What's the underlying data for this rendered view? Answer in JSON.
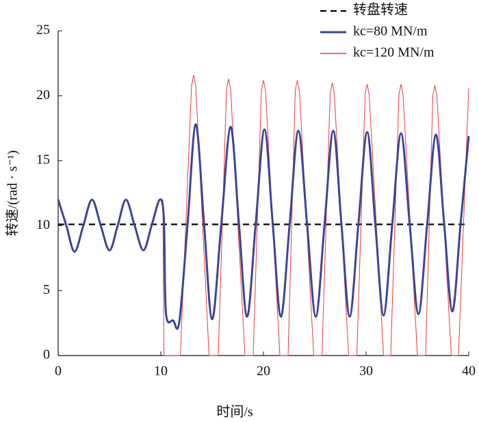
{
  "chart_data": {
    "type": "line",
    "xlabel": "时间/s",
    "ylabel": "转速/(rad · s⁻¹)",
    "xlim": [
      0,
      40
    ],
    "xticks": [
      0,
      10,
      20,
      30,
      40
    ],
    "ylim": [
      0,
      25
    ],
    "yticks": [
      0,
      5,
      10,
      15,
      20,
      25
    ],
    "legend": "upper right",
    "series": [
      {
        "name": "转盘转速",
        "color": "#000000",
        "style": "dashed",
        "x": [
          0,
          40
        ],
        "values": [
          10.1,
          10.1
        ]
      },
      {
        "name": "kc=120 MN/m",
        "color": "#e8393a",
        "style": "solid",
        "x": [
          10.2,
          10.3,
          11.9,
          13.0,
          13.2,
          13.4,
          14.7,
          15.6,
          16.4,
          16.6,
          16.8,
          18.2,
          19.0,
          19.8,
          20.0,
          20.2,
          21.6,
          22.4,
          23.1,
          23.3,
          23.5,
          24.9,
          25.7,
          26.5,
          26.7,
          26.9,
          28.3,
          29.1,
          29.9,
          30.1,
          30.3,
          31.7,
          32.4,
          33.2,
          33.4,
          33.6,
          35.0,
          35.8,
          36.5,
          36.7,
          36.9,
          38.3,
          39.0,
          40.0
        ],
        "values": [
          12,
          0,
          0,
          20.8,
          21.6,
          20.8,
          0,
          0,
          20.5,
          21.3,
          20.5,
          0,
          0,
          20.4,
          21.2,
          20.4,
          0,
          0,
          20.4,
          21.2,
          20.4,
          0,
          0,
          20.2,
          21.0,
          20.2,
          0,
          0,
          20.1,
          20.9,
          20.1,
          0,
          0,
          20.1,
          20.9,
          20.1,
          0,
          0,
          20.0,
          20.8,
          20.0,
          0,
          0,
          20.6
        ]
      },
      {
        "name": "kc=80 MN/m",
        "color": "#3d4394",
        "style": "solid",
        "x": [
          0,
          0.8,
          1.6,
          2.45,
          3.3,
          4.15,
          5.0,
          5.8,
          6.6,
          7.45,
          8.3,
          9.1,
          9.9,
          10.3,
          10.5,
          11.2,
          11.8,
          12.6,
          13.4,
          14.2,
          15.0,
          15.9,
          16.8,
          17.6,
          18.4,
          19.25,
          20.1,
          20.9,
          21.7,
          22.55,
          23.4,
          24.25,
          25.1,
          25.95,
          26.8,
          27.6,
          28.4,
          29.25,
          30.1,
          30.9,
          31.7,
          32.55,
          33.4,
          34.25,
          35.1,
          35.95,
          36.8,
          37.6,
          38.4,
          39.2,
          40.0
        ],
        "values": [
          12,
          10,
          8,
          10,
          12,
          10,
          8.1,
          10,
          12,
          10,
          8.1,
          10,
          12,
          10.5,
          3.3,
          2.7,
          2.6,
          10,
          17.8,
          10.3,
          2.8,
          10.2,
          17.6,
          10.3,
          3.0,
          10.2,
          17.4,
          10.2,
          3.0,
          10.1,
          17.3,
          10.1,
          3.0,
          10.1,
          17.3,
          10.1,
          3.0,
          10.1,
          17.2,
          10.1,
          3.1,
          10.1,
          17.1,
          10.1,
          3.2,
          10.1,
          17.0,
          10.2,
          3.4,
          10.1,
          16.9
        ]
      }
    ]
  }
}
